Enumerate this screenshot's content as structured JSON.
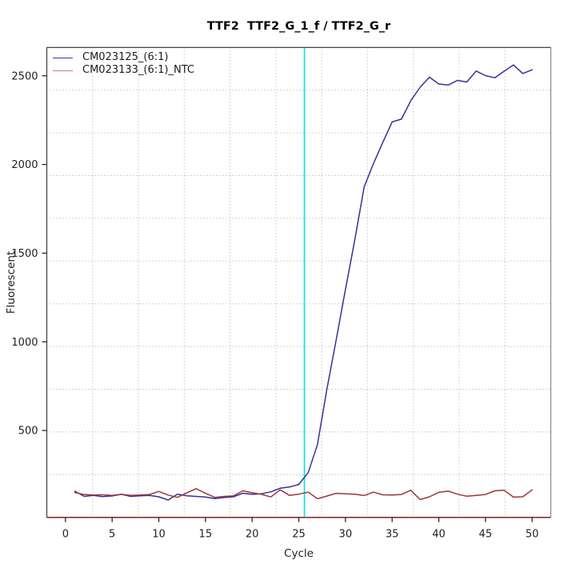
{
  "title": "TTF2  TTF2_G_1_f / TTF2_G_r",
  "legend": {
    "items": [
      {
        "label": "CM023125_(6:1)",
        "swatch_color": "#3A3AA0"
      },
      {
        "label": "CM023133_(6:1)_NTC",
        "swatch_color": "#BC7F7F"
      }
    ]
  },
  "chart_data": {
    "type": "line",
    "title": "TTF2  TTF2_G_1_f / TTF2_G_r",
    "xlabel": "Cycle",
    "ylabel": "Fluorescent",
    "x_ticks": [
      0,
      5,
      10,
      15,
      20,
      25,
      30,
      35,
      40,
      45,
      50
    ],
    "y_ticks": [
      500,
      1000,
      1500,
      2000,
      2500
    ],
    "xlim": [
      -2,
      52
    ],
    "ylim": [
      10,
      2660
    ],
    "grid": {
      "style": "dotted",
      "nx": 11,
      "ny": 11,
      "color": "#A9A9A9"
    },
    "legend_position": "top-left",
    "threshold_line": {
      "x": 25.6,
      "orientation": "vertical",
      "color": "#00E5E5"
    },
    "axis_colors": {
      "bottom": "#7E2222",
      "left": "#3A3A3A",
      "top": "#2A2A2A",
      "right": "#8A8A8A"
    },
    "x": [
      1,
      2,
      3,
      4,
      5,
      6,
      7,
      8,
      9,
      10,
      11,
      12,
      13,
      14,
      15,
      16,
      17,
      18,
      19,
      20,
      21,
      22,
      23,
      24,
      25,
      26,
      27,
      28,
      29,
      30,
      31,
      32,
      33,
      34,
      35,
      36,
      37,
      38,
      39,
      40,
      41,
      42,
      43,
      44,
      45,
      46,
      47,
      48,
      49,
      50
    ],
    "series": [
      {
        "name": "CM023125_(6:1)",
        "color": "#32329B",
        "values": [
          158,
          128,
          134,
          127,
          131,
          140,
          128,
          132,
          134,
          126,
          108,
          141,
          132,
          128,
          125,
          116,
          122,
          126,
          146,
          140,
          143,
          154,
          174,
          181,
          196,
          262,
          420,
          730,
          1010,
          1295,
          1575,
          1873,
          2005,
          2125,
          2240,
          2256,
          2360,
          2436,
          2492,
          2454,
          2448,
          2474,
          2465,
          2527,
          2501,
          2489,
          2526,
          2561,
          2513,
          2534
        ]
      },
      {
        "name": "CM023133_(6:1)_NTC",
        "color": "#9B3838",
        "values": [
          150,
          139,
          136,
          137,
          134,
          140,
          134,
          136,
          139,
          156,
          136,
          123,
          148,
          172,
          146,
          123,
          128,
          131,
          160,
          149,
          140,
          125,
          165,
          134,
          141,
          152,
          115,
          130,
          146,
          143,
          141,
          133,
          152,
          137,
          136,
          139,
          163,
          110,
          126,
          151,
          158,
          141,
          129,
          134,
          139,
          160,
          163,
          124,
          126,
          165
        ]
      }
    ]
  }
}
